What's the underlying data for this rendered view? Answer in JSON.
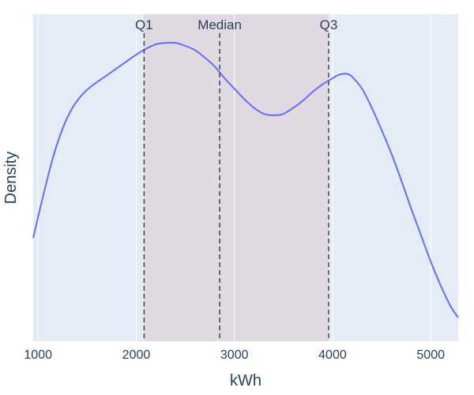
{
  "chart_data": {
    "type": "line",
    "xlabel": "kWh",
    "ylabel": "Density",
    "xlim": [
      950,
      5280
    ],
    "ylim": [
      0,
      1
    ],
    "x_ticks": [
      1000,
      2000,
      3000,
      4000,
      5000
    ],
    "y_ticks_shown": false,
    "grid": "vertical",
    "series": [
      {
        "color": "#636efa",
        "x": [
          950,
          1050,
          1150,
          1250,
          1350,
          1450,
          1550,
          1700,
          1850,
          2000,
          2100,
          2200,
          2300,
          2400,
          2500,
          2600,
          2700,
          2800,
          2900,
          3000,
          3100,
          3200,
          3300,
          3400,
          3500,
          3600,
          3700,
          3800,
          3900,
          4000,
          4050,
          4100,
          4150,
          4200,
          4300,
          4400,
          4500,
          4600,
          4700,
          4800,
          4900,
          5000,
          5100,
          5200,
          5280
        ],
        "y": [
          0.35,
          0.49,
          0.62,
          0.72,
          0.79,
          0.835,
          0.865,
          0.9,
          0.935,
          0.97,
          0.99,
          1.005,
          1.01,
          1.01,
          1.0,
          0.985,
          0.96,
          0.93,
          0.89,
          0.855,
          0.82,
          0.79,
          0.77,
          0.765,
          0.77,
          0.79,
          0.815,
          0.845,
          0.87,
          0.89,
          0.9,
          0.905,
          0.905,
          0.895,
          0.855,
          0.79,
          0.715,
          0.635,
          0.545,
          0.45,
          0.36,
          0.27,
          0.19,
          0.12,
          0.08
        ]
      }
    ],
    "annotations": [
      {
        "label": "Q1",
        "x": 2080,
        "dash": true
      },
      {
        "label": "Median",
        "x": 2850,
        "dash": true
      },
      {
        "label": "Q3",
        "x": 3960,
        "dash": true
      }
    ],
    "shaded_band": {
      "x0": 2080,
      "x1": 3960,
      "color": "#d8a0a8"
    },
    "colors": {
      "plot_bg": "#e5ecf6",
      "grid": "#ffffff",
      "axis_text": "#2a3f5f",
      "annotation_line": "#444444"
    }
  }
}
